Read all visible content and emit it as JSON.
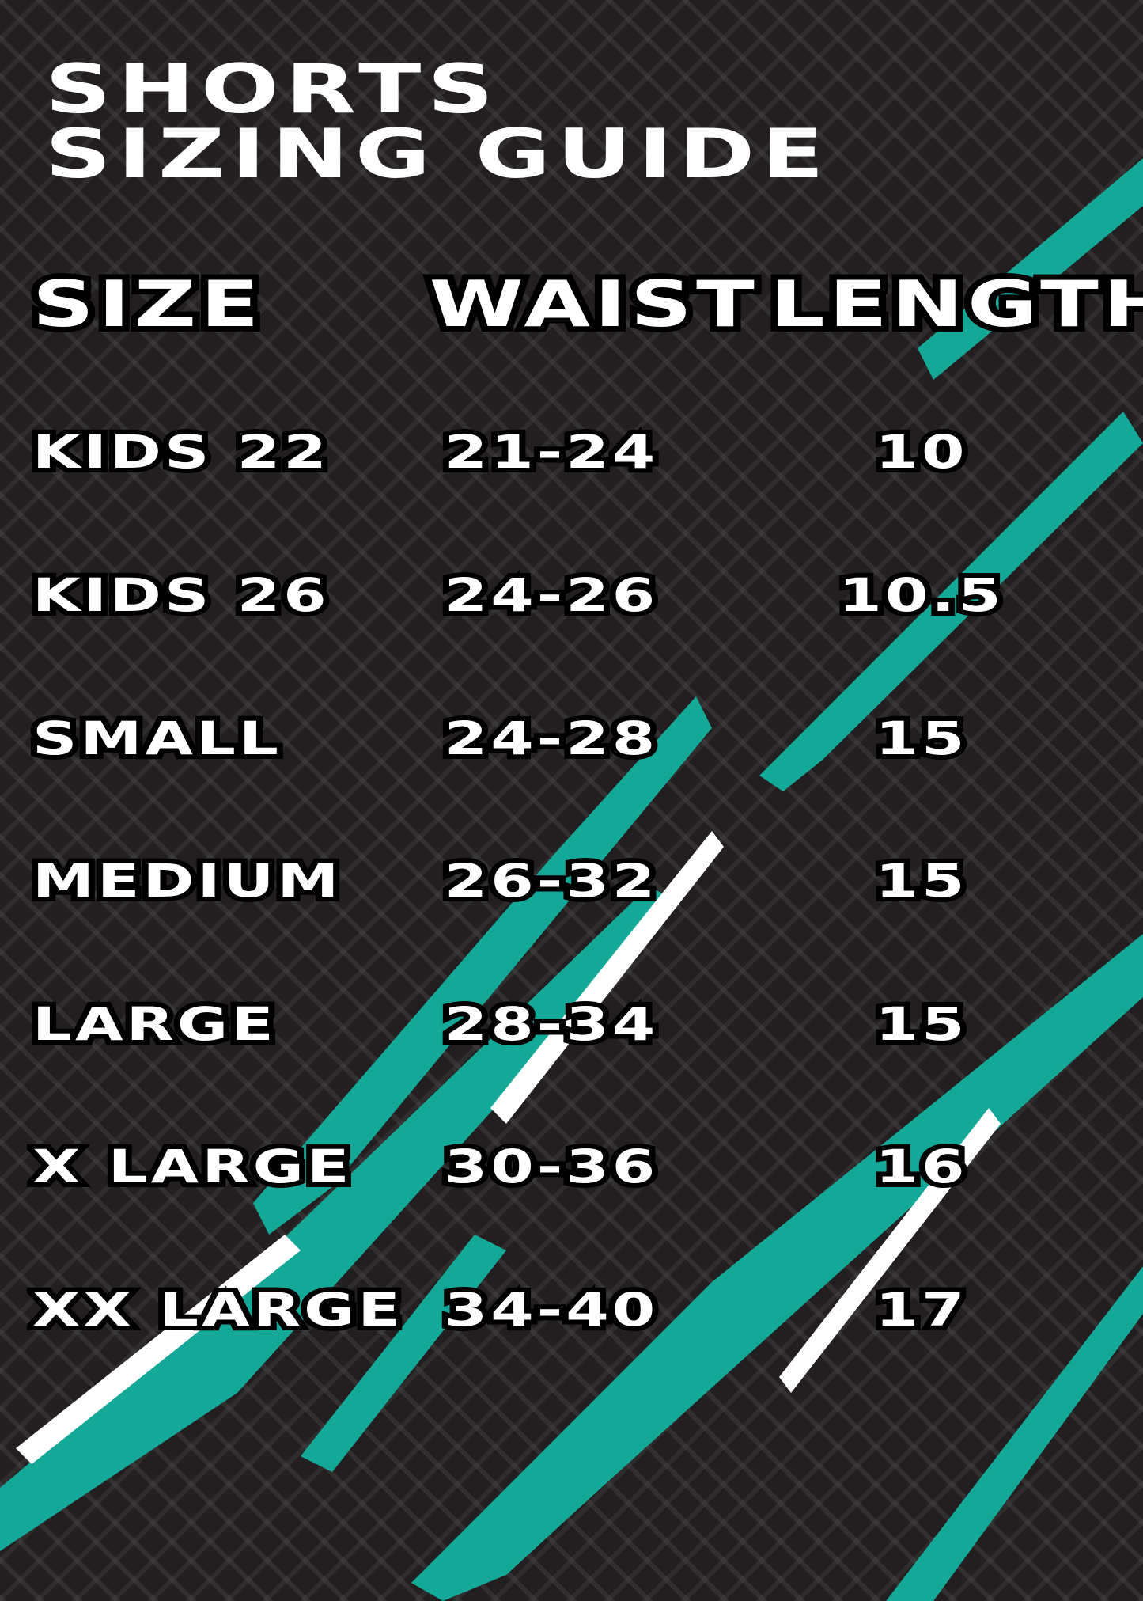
{
  "title": {
    "line1": "Shorts",
    "line2": "Sizing Guide"
  },
  "colors": {
    "background": "#231f20",
    "accent": "#14a899",
    "text": "#ffffff",
    "outline": "#000000"
  },
  "headers": {
    "size": "Size",
    "waist": "Waist",
    "length": "Length"
  },
  "rows": [
    {
      "size": "Kids 22",
      "waist": "21-24",
      "length": "10"
    },
    {
      "size": "Kids 26",
      "waist": "24-26",
      "length": "10.5"
    },
    {
      "size": "Small",
      "waist": "24-28",
      "length": "15"
    },
    {
      "size": "Medium",
      "waist": "26-32",
      "length": "15"
    },
    {
      "size": "Large",
      "waist": "28-34",
      "length": "15"
    },
    {
      "size": "X Large",
      "waist": "30-36",
      "length": "16"
    },
    {
      "size": "XX Large",
      "waist": "34-40",
      "length": "17"
    }
  ]
}
